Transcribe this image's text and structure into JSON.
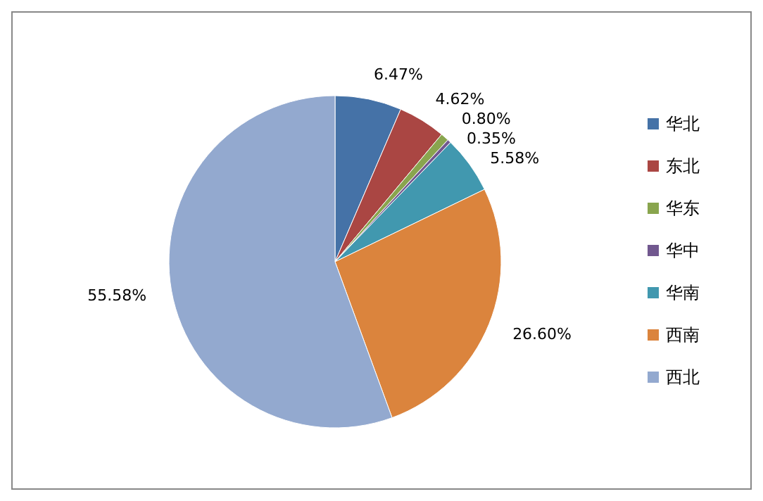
{
  "chart_data": {
    "type": "pie",
    "categories": [
      "华北",
      "东北",
      "华东",
      "华中",
      "华南",
      "西南",
      "西北"
    ],
    "values": [
      6.47,
      4.62,
      0.8,
      0.35,
      5.58,
      26.6,
      55.58
    ],
    "colors": [
      "#4572a7",
      "#aa4643",
      "#89a54e",
      "#71588f",
      "#4198af",
      "#db843d",
      "#93a9cf"
    ],
    "value_labels": [
      "6.47%",
      "4.62%",
      "0.80%",
      "0.35%",
      "5.58%",
      "26.60%",
      "55.58%"
    ],
    "legend": "right"
  }
}
